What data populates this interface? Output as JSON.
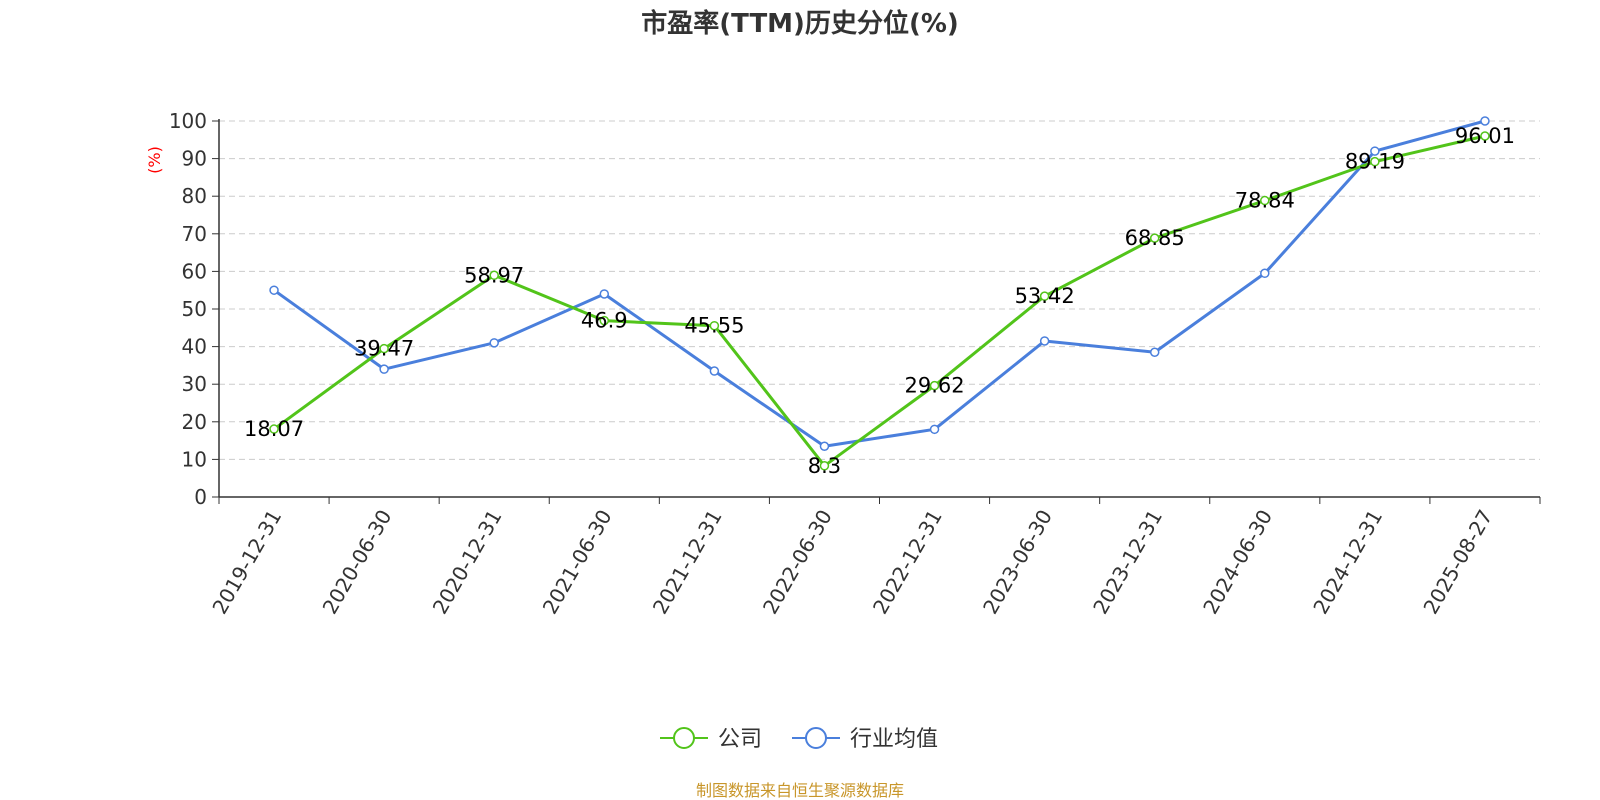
{
  "chart_data": {
    "type": "line",
    "title": "市盈率(TTM)历史分位(%)",
    "ylabel": "(%)",
    "ylim": [
      0,
      100
    ],
    "yticks": [
      0,
      10,
      20,
      30,
      40,
      50,
      60,
      70,
      80,
      90,
      100
    ],
    "grid": true,
    "legend_position": "bottom",
    "categories": [
      "2019-12-31",
      "2020-06-30",
      "2020-12-31",
      "2021-06-30",
      "2021-12-31",
      "2022-06-30",
      "2022-12-31",
      "2023-06-30",
      "2023-12-31",
      "2024-06-30",
      "2024-12-31",
      "2025-08-27"
    ],
    "series": [
      {
        "name": "公司",
        "color": "#52c41a",
        "show_labels": true,
        "values": [
          18.07,
          39.47,
          58.97,
          46.9,
          45.55,
          8.3,
          29.62,
          53.42,
          68.85,
          78.84,
          89.19,
          96.01
        ]
      },
      {
        "name": "行业均值",
        "color": "#4a7fdc",
        "show_labels": false,
        "values": [
          55,
          34,
          41,
          54,
          33.5,
          13.5,
          18,
          41.5,
          38.5,
          59.5,
          92,
          100
        ]
      }
    ]
  },
  "footer": {
    "source": "制图数据来自恒生聚源数据库"
  }
}
